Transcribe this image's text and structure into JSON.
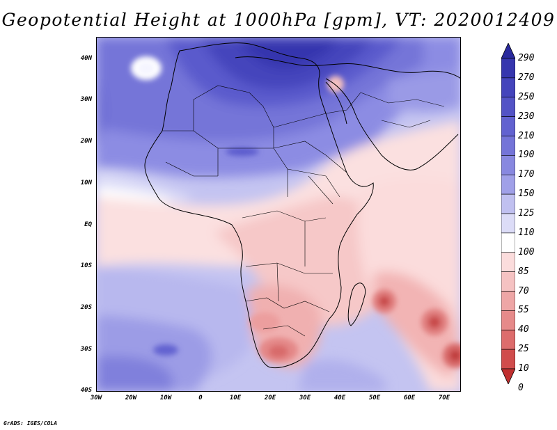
{
  "title": "Geopotential Height at 1000hPa [gpm], VT: 2020012409",
  "credit": "GrADS: IGES/COLA",
  "latitude_labels": [
    "40N",
    "30N",
    "20N",
    "10N",
    "EQ",
    "10S",
    "20S",
    "30S",
    "40S"
  ],
  "longitude_labels": [
    "30W",
    "20W",
    "10W",
    "0",
    "10E",
    "20E",
    "30E",
    "40E",
    "50E",
    "60E",
    "70E"
  ],
  "colorbar": {
    "levels": [
      "290",
      "270",
      "250",
      "230",
      "210",
      "190",
      "170",
      "150",
      "125",
      "110",
      "100",
      "85",
      "70",
      "55",
      "40",
      "25",
      "10",
      "0"
    ],
    "colors": [
      "#2a2a9e",
      "#3636ae",
      "#4444bc",
      "#5353c6",
      "#6262d0",
      "#7474d8",
      "#8888e0",
      "#a0a0e8",
      "#c0c0f0",
      "#dcdcf7",
      "#ffffff",
      "#fbdcdc",
      "#f5c2c2",
      "#eea6a6",
      "#e68a8a",
      "#dd6c6c",
      "#d04c4c",
      "#c03030"
    ]
  }
}
